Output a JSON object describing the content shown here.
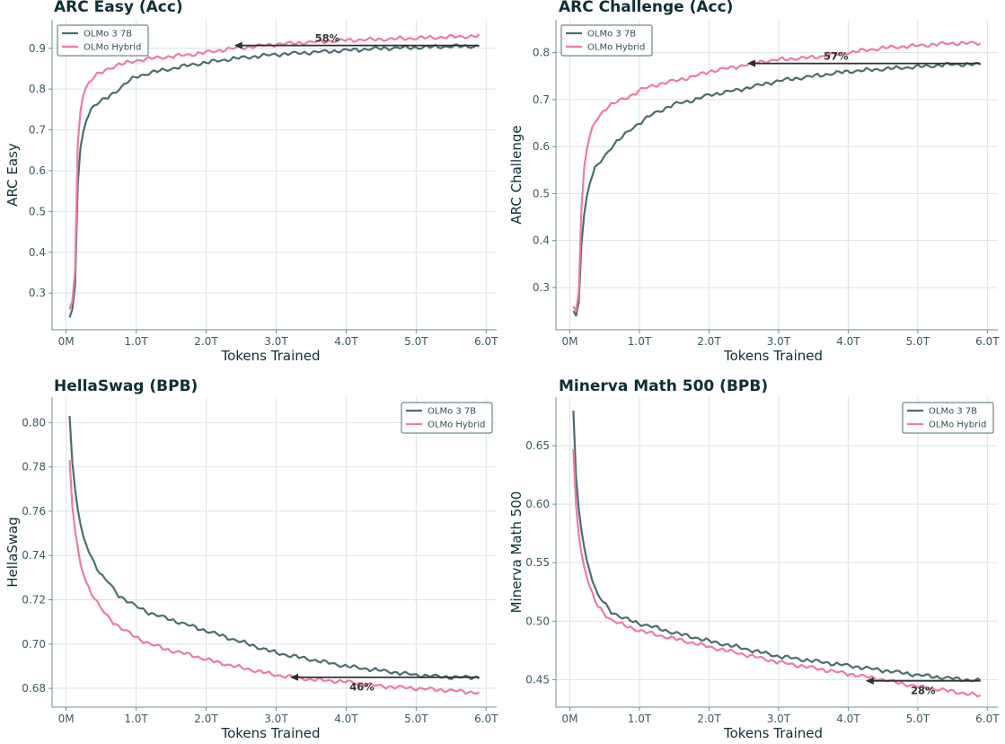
{
  "colors": {
    "olmo": "#4b6e70",
    "hybrid": "#ec7aaa",
    "grid": "#d9e3e3",
    "axis": "#6f8c8f",
    "arrow": "#2f2f2f"
  },
  "chart_data": [
    {
      "type": "line",
      "title": "ARC Easy (Acc)",
      "xlabel": "Tokens Trained",
      "ylabel": "ARC Easy",
      "xlim": [
        -0.2,
        6.15
      ],
      "ylim": [
        0.21,
        0.97
      ],
      "xticks": [
        0,
        1,
        2,
        3,
        4,
        5,
        6
      ],
      "xtick_labels": [
        "0M",
        "1.0T",
        "2.0T",
        "3.0T",
        "4.0T",
        "5.0T",
        "6.0T"
      ],
      "yticks": [
        0.3,
        0.4,
        0.5,
        0.6,
        0.7,
        0.8,
        0.9
      ],
      "ytick_labels": [
        "0.3",
        "0.4",
        "0.5",
        "0.6",
        "0.7",
        "0.8",
        "0.9"
      ],
      "grid": true,
      "legend_position": "top-left",
      "series": [
        {
          "name": "OLMo 3 7B",
          "x": [
            0.05,
            0.08,
            0.12,
            0.16,
            0.2,
            0.25,
            0.3,
            0.35,
            0.4,
            0.5,
            0.6,
            0.75,
            0.9,
            1.0,
            1.2,
            1.5,
            1.8,
            2.0,
            2.4,
            2.7,
            3.0,
            3.5,
            4.0,
            4.5,
            5.0,
            5.5,
            5.9
          ],
          "y": [
            0.24,
            0.26,
            0.26,
            0.55,
            0.65,
            0.7,
            0.73,
            0.75,
            0.76,
            0.77,
            0.78,
            0.8,
            0.82,
            0.83,
            0.84,
            0.85,
            0.86,
            0.865,
            0.875,
            0.88,
            0.885,
            0.89,
            0.895,
            0.9,
            0.902,
            0.905,
            0.905
          ]
        },
        {
          "name": "OLMo Hybrid",
          "x": [
            0.05,
            0.08,
            0.12,
            0.16,
            0.2,
            0.25,
            0.3,
            0.35,
            0.4,
            0.5,
            0.6,
            0.75,
            0.9,
            1.0,
            1.2,
            1.5,
            1.8,
            2.0,
            2.4,
            2.7,
            3.0,
            3.5,
            4.0,
            4.5,
            5.0,
            5.5,
            5.9
          ],
          "y": [
            0.26,
            0.28,
            0.28,
            0.65,
            0.74,
            0.79,
            0.81,
            0.82,
            0.83,
            0.84,
            0.85,
            0.86,
            0.865,
            0.87,
            0.875,
            0.88,
            0.885,
            0.89,
            0.9,
            0.905,
            0.91,
            0.915,
            0.92,
            0.922,
            0.925,
            0.928,
            0.93
          ]
        }
      ],
      "annotation": {
        "label": "58%",
        "x_from": 5.9,
        "x_to": 2.4,
        "y": 0.907
      }
    },
    {
      "type": "line",
      "title": "ARC Challenge (Acc)",
      "xlabel": "Tokens Trained",
      "ylabel": "ARC Challenge",
      "xlim": [
        -0.2,
        6.15
      ],
      "ylim": [
        0.21,
        0.87
      ],
      "xticks": [
        0,
        1,
        2,
        3,
        4,
        5,
        6
      ],
      "xtick_labels": [
        "0M",
        "1.0T",
        "2.0T",
        "3.0T",
        "4.0T",
        "5.0T",
        "6.0T"
      ],
      "yticks": [
        0.3,
        0.4,
        0.5,
        0.6,
        0.7,
        0.8
      ],
      "ytick_labels": [
        "0.3",
        "0.4",
        "0.5",
        "0.6",
        "0.7",
        "0.8"
      ],
      "grid": true,
      "legend_position": "top-left",
      "series": [
        {
          "name": "OLMo 3 7B",
          "x": [
            0.05,
            0.08,
            0.12,
            0.16,
            0.2,
            0.25,
            0.3,
            0.35,
            0.4,
            0.5,
            0.6,
            0.75,
            0.9,
            1.0,
            1.2,
            1.5,
            1.8,
            2.0,
            2.4,
            2.7,
            3.0,
            3.5,
            4.0,
            4.5,
            5.0,
            5.5,
            5.9
          ],
          "y": [
            0.25,
            0.24,
            0.24,
            0.38,
            0.45,
            0.5,
            0.53,
            0.55,
            0.56,
            0.58,
            0.6,
            0.62,
            0.64,
            0.65,
            0.67,
            0.69,
            0.7,
            0.71,
            0.72,
            0.73,
            0.74,
            0.75,
            0.76,
            0.765,
            0.77,
            0.775,
            0.775
          ]
        },
        {
          "name": "OLMo Hybrid",
          "x": [
            0.05,
            0.08,
            0.12,
            0.16,
            0.2,
            0.25,
            0.3,
            0.35,
            0.4,
            0.5,
            0.6,
            0.75,
            0.9,
            1.0,
            1.2,
            1.5,
            1.8,
            2.0,
            2.4,
            2.7,
            3.0,
            3.5,
            4.0,
            4.5,
            5.0,
            5.5,
            5.9
          ],
          "y": [
            0.26,
            0.25,
            0.25,
            0.45,
            0.55,
            0.6,
            0.63,
            0.65,
            0.66,
            0.68,
            0.69,
            0.7,
            0.71,
            0.72,
            0.73,
            0.74,
            0.75,
            0.76,
            0.77,
            0.78,
            0.785,
            0.79,
            0.8,
            0.81,
            0.815,
            0.82,
            0.82
          ]
        }
      ],
      "annotation": {
        "label": "57%",
        "x_from": 5.9,
        "x_to": 2.55,
        "y": 0.777
      }
    },
    {
      "type": "line",
      "title": "HellaSwag (BPB)",
      "xlabel": "Tokens Trained",
      "ylabel": "HellaSwag",
      "xlim": [
        -0.2,
        6.15
      ],
      "ylim": [
        0.6715,
        0.8115
      ],
      "xticks": [
        0,
        1,
        2,
        3,
        4,
        5,
        6
      ],
      "xtick_labels": [
        "0M",
        "1.0T",
        "2.0T",
        "3.0T",
        "4.0T",
        "5.0T",
        "6.0T"
      ],
      "yticks": [
        0.68,
        0.7,
        0.72,
        0.74,
        0.76,
        0.78,
        0.8
      ],
      "ytick_labels": [
        "0.68",
        "0.70",
        "0.72",
        "0.74",
        "0.76",
        "0.78",
        "0.80"
      ],
      "grid": true,
      "legend_position": "top-right",
      "series": [
        {
          "name": "OLMo 3 7B",
          "x": [
            0.05,
            0.08,
            0.12,
            0.16,
            0.2,
            0.25,
            0.3,
            0.35,
            0.4,
            0.5,
            0.6,
            0.75,
            0.9,
            1.0,
            1.2,
            1.5,
            1.8,
            2.0,
            2.4,
            2.7,
            3.0,
            3.5,
            4.0,
            4.5,
            5.0,
            5.5,
            5.9
          ],
          "y": [
            0.803,
            0.785,
            0.772,
            0.762,
            0.755,
            0.748,
            0.744,
            0.74,
            0.737,
            0.731,
            0.728,
            0.722,
            0.719,
            0.717,
            0.714,
            0.711,
            0.708,
            0.706,
            0.702,
            0.699,
            0.696,
            0.693,
            0.69,
            0.688,
            0.686,
            0.685,
            0.685
          ]
        },
        {
          "name": "OLMo Hybrid",
          "x": [
            0.05,
            0.08,
            0.12,
            0.16,
            0.2,
            0.25,
            0.3,
            0.35,
            0.4,
            0.5,
            0.6,
            0.75,
            0.9,
            1.0,
            1.2,
            1.5,
            1.8,
            2.0,
            2.4,
            2.7,
            3.0,
            3.5,
            4.0,
            4.5,
            5.0,
            5.5,
            5.9
          ],
          "y": [
            0.783,
            0.765,
            0.753,
            0.745,
            0.737,
            0.731,
            0.727,
            0.724,
            0.721,
            0.716,
            0.712,
            0.708,
            0.705,
            0.703,
            0.7,
            0.697,
            0.695,
            0.693,
            0.69,
            0.688,
            0.686,
            0.684,
            0.683,
            0.681,
            0.68,
            0.679,
            0.678
          ]
        }
      ],
      "annotation": {
        "label": "46%",
        "x_from": 5.9,
        "x_to": 3.2,
        "y": 0.685
      }
    },
    {
      "type": "line",
      "title": "Minerva Math 500 (BPB)",
      "xlabel": "Tokens Trained",
      "ylabel": "Minerva Math 500",
      "xlim": [
        -0.2,
        6.15
      ],
      "ylim": [
        0.4265,
        0.6915
      ],
      "xticks": [
        0,
        1,
        2,
        3,
        4,
        5,
        6
      ],
      "xtick_labels": [
        "0M",
        "1.0T",
        "2.0T",
        "3.0T",
        "4.0T",
        "5.0T",
        "6.0T"
      ],
      "yticks": [
        0.45,
        0.5,
        0.55,
        0.6,
        0.65
      ],
      "ytick_labels": [
        "0.45",
        "0.50",
        "0.55",
        "0.60",
        "0.65"
      ],
      "grid": true,
      "legend_position": "top-right",
      "series": [
        {
          "name": "OLMo 3 7B",
          "x": [
            0.05,
            0.08,
            0.12,
            0.16,
            0.2,
            0.25,
            0.3,
            0.35,
            0.4,
            0.5,
            0.6,
            0.75,
            0.9,
            1.0,
            1.2,
            1.5,
            1.8,
            2.0,
            2.4,
            2.7,
            3.0,
            3.5,
            4.0,
            4.5,
            5.0,
            5.5,
            5.9
          ],
          "y": [
            0.68,
            0.63,
            0.6,
            0.58,
            0.565,
            0.55,
            0.54,
            0.53,
            0.522,
            0.515,
            0.508,
            0.503,
            0.5,
            0.498,
            0.495,
            0.49,
            0.486,
            0.483,
            0.478,
            0.474,
            0.47,
            0.466,
            0.462,
            0.458,
            0.454,
            0.451,
            0.449
          ]
        },
        {
          "name": "OLMo Hybrid",
          "x": [
            0.05,
            0.08,
            0.12,
            0.16,
            0.2,
            0.25,
            0.3,
            0.35,
            0.4,
            0.5,
            0.6,
            0.75,
            0.9,
            1.0,
            1.2,
            1.5,
            1.8,
            2.0,
            2.4,
            2.7,
            3.0,
            3.5,
            4.0,
            4.5,
            5.0,
            5.5,
            5.9
          ],
          "y": [
            0.647,
            0.605,
            0.578,
            0.56,
            0.548,
            0.536,
            0.527,
            0.519,
            0.513,
            0.506,
            0.501,
            0.497,
            0.494,
            0.492,
            0.489,
            0.485,
            0.481,
            0.478,
            0.473,
            0.469,
            0.465,
            0.46,
            0.455,
            0.45,
            0.444,
            0.44,
            0.436
          ]
        }
      ],
      "annotation": {
        "label": "28%",
        "x_from": 5.9,
        "x_to": 4.25,
        "y": 0.449
      }
    }
  ]
}
